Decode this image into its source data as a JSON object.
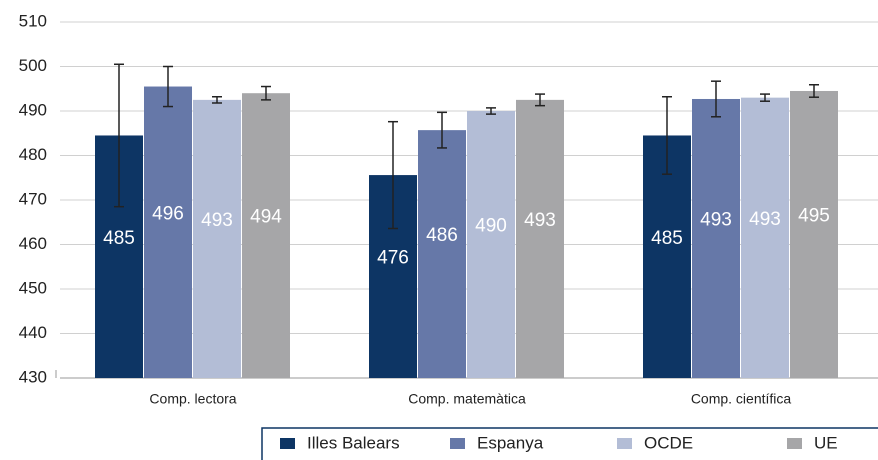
{
  "chart_data": {
    "type": "bar",
    "categories": [
      "Comp. lectora",
      "Comp. matemàtica",
      "Comp. científica"
    ],
    "series": [
      {
        "name": "Illes Balears",
        "color": "#0d3564",
        "values": [
          484.5,
          475.6,
          484.5
        ],
        "value_labels": [
          "485",
          "476",
          "485"
        ],
        "errors": [
          16,
          12,
          8.7
        ]
      },
      {
        "name": "Espanya",
        "color": "#6678a8",
        "values": [
          495.5,
          485.7,
          492.7
        ],
        "value_labels": [
          "496",
          "486",
          "493"
        ],
        "errors": [
          4.5,
          4,
          4
        ]
      },
      {
        "name": "OCDE",
        "color": "#b3bdd6",
        "values": [
          492.5,
          490,
          493
        ],
        "value_labels": [
          "493",
          "490",
          "493"
        ],
        "errors": [
          0.7,
          0.7,
          0.8
        ]
      },
      {
        "name": "UE",
        "color": "#a6a6a8",
        "values": [
          494,
          492.5,
          494.5
        ],
        "value_labels": [
          "494",
          "493",
          "495"
        ],
        "errors": [
          1.5,
          1.3,
          1.4
        ]
      }
    ],
    "ylim": [
      430,
      510
    ],
    "yticks": [
      430,
      440,
      450,
      460,
      470,
      480,
      490,
      500,
      510
    ],
    "grid": true,
    "legend": "bottom-right"
  }
}
